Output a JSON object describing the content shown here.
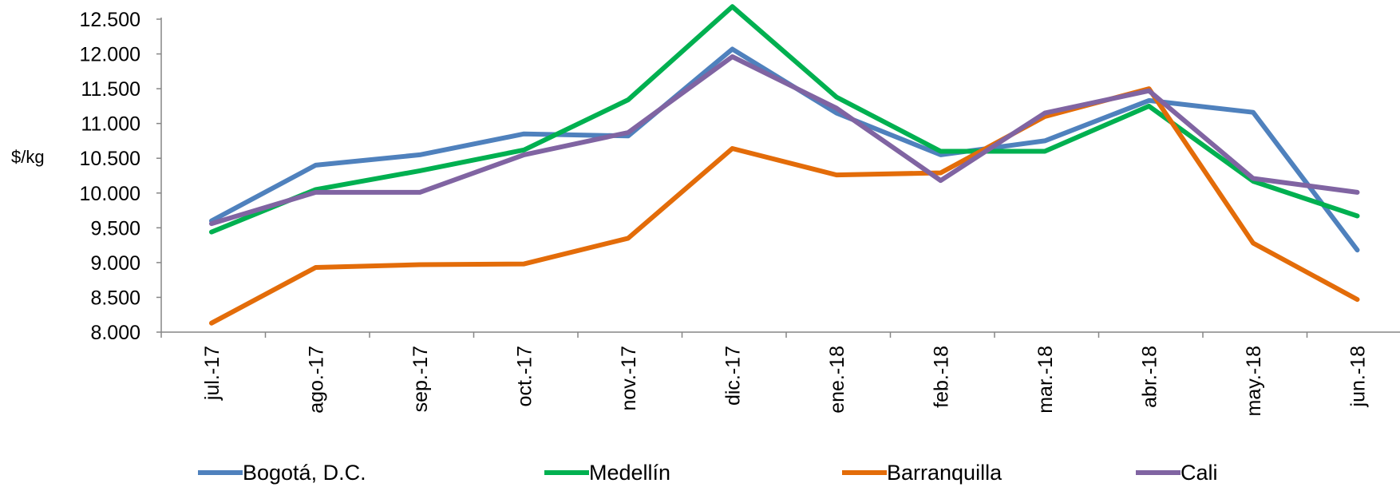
{
  "chart_data": {
    "type": "line",
    "title": "",
    "xlabel": "",
    "ylabel": "$/kg",
    "ylim": [
      8000,
      12500
    ],
    "yticks": [
      8000,
      8500,
      9000,
      9500,
      10000,
      10500,
      11000,
      11500,
      12000,
      12500
    ],
    "ytick_labels": [
      "8.000",
      "8.500",
      "9.000",
      "9.500",
      "10.000",
      "10.500",
      "11.000",
      "11.500",
      "12.000",
      "12.500"
    ],
    "categories": [
      "jul.-17",
      "ago.-17",
      "sep.-17",
      "oct.-17",
      "nov.-17",
      "dic.-17",
      "ene.-18",
      "feb.-18",
      "mar.-18",
      "abr.-18",
      "may.-18",
      "jun.-18"
    ],
    "grid": false,
    "legend_position": "bottom",
    "series": [
      {
        "name": "Bogotá, D.C.",
        "color": "#4F81BD",
        "values": [
          9600,
          10400,
          10550,
          10850,
          10820,
          12070,
          11150,
          10550,
          10750,
          11330,
          11160,
          9180
        ]
      },
      {
        "name": "Medellín",
        "color": "#00B050",
        "values": [
          9440,
          10050,
          10320,
          10620,
          11340,
          12680,
          11380,
          10600,
          10600,
          11250,
          10170,
          9670
        ]
      },
      {
        "name": "Barranquilla",
        "color": "#E36C09",
        "values": [
          8130,
          8930,
          8970,
          8980,
          9350,
          10640,
          10260,
          10290,
          11100,
          11500,
          9280,
          8470
        ]
      },
      {
        "name": "Cali",
        "color": "#8064A2",
        "values": [
          9560,
          10010,
          10010,
          10550,
          10870,
          11960,
          11220,
          10180,
          11150,
          11470,
          10210,
          10010
        ]
      }
    ]
  }
}
